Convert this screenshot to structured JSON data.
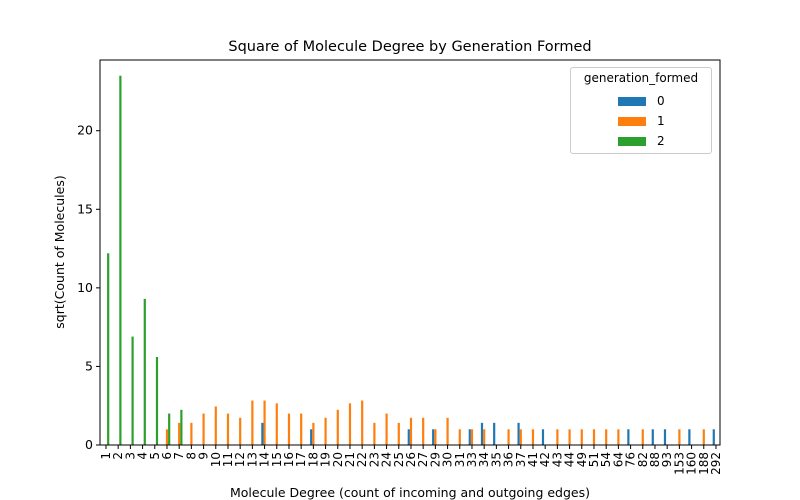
{
  "chart_data": {
    "type": "bar",
    "title": "Square of Molecule Degree by Generation Formed",
    "xlabel": "Molecule Degree (count of incoming and outgoing edges)",
    "ylabel": "sqrt(Count of Molecules)",
    "ylim": [
      0,
      24.5
    ],
    "yticks": [
      0,
      5,
      10,
      15,
      20
    ],
    "grid": false,
    "legend": {
      "title": "generation_formed",
      "placement": "top-right"
    },
    "categories": [
      "1",
      "2",
      "3",
      "4",
      "5",
      "6",
      "7",
      "8",
      "9",
      "10",
      "11",
      "12",
      "13",
      "14",
      "15",
      "16",
      "17",
      "18",
      "19",
      "20",
      "21",
      "22",
      "23",
      "24",
      "25",
      "26",
      "27",
      "29",
      "30",
      "31",
      "33",
      "34",
      "35",
      "36",
      "37",
      "41",
      "42",
      "43",
      "44",
      "49",
      "51",
      "54",
      "64",
      "76",
      "82",
      "88",
      "93",
      "153",
      "160",
      "188",
      "292"
    ],
    "series": [
      {
        "name": "0",
        "color": "#1f77b4",
        "values": [
          0,
          0,
          0,
          0,
          0,
          0,
          0,
          0,
          0,
          0,
          0,
          0,
          0,
          1.41,
          0,
          0,
          0,
          1,
          0,
          0,
          0,
          0,
          0,
          0,
          0,
          1,
          0,
          1,
          0,
          0,
          1,
          1.41,
          1.41,
          0,
          1.41,
          0,
          1,
          0,
          0,
          0,
          0,
          0,
          0,
          1,
          0,
          1,
          1,
          0,
          1,
          0,
          1
        ]
      },
      {
        "name": "1",
        "color": "#ff7f0e",
        "values": [
          0,
          0,
          0,
          0,
          0,
          1,
          1.41,
          1.41,
          2,
          2.45,
          2,
          1.73,
          2.83,
          2.83,
          2.65,
          2,
          2,
          1.41,
          1.73,
          2.24,
          2.65,
          2.83,
          1.41,
          2,
          1.41,
          1.73,
          1.73,
          1,
          1.73,
          1,
          1,
          1,
          0,
          1,
          1,
          1,
          0,
          1,
          1,
          1,
          1,
          1,
          1,
          0,
          1,
          0,
          0,
          1,
          0,
          1,
          0
        ]
      },
      {
        "name": "2",
        "color": "#2ca02c",
        "values": [
          12.2,
          23.5,
          6.9,
          9.3,
          5.6,
          2,
          2.24,
          0,
          0,
          0,
          0,
          0,
          0,
          0,
          0,
          0,
          0,
          0,
          0,
          0,
          0,
          0,
          0,
          0,
          0,
          0,
          0,
          0,
          0,
          0,
          0,
          0,
          0,
          0,
          0,
          0,
          0,
          0,
          0,
          0,
          0,
          0,
          0,
          0,
          0,
          0,
          0,
          0,
          0,
          0,
          0
        ]
      }
    ]
  }
}
